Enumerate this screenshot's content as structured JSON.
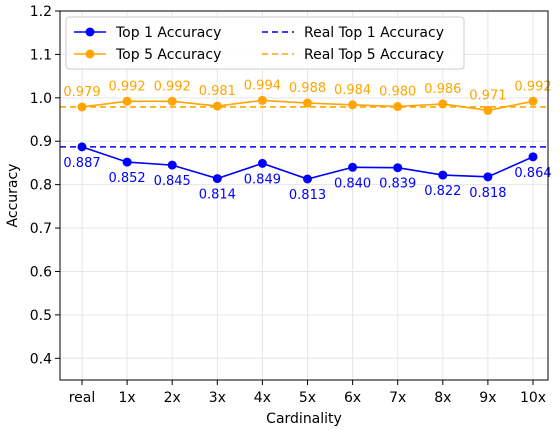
{
  "chart_data": {
    "type": "line",
    "xlabel": "Cardinality",
    "ylabel": "Accuracy",
    "categories": [
      "real",
      "1x",
      "2x",
      "3x",
      "4x",
      "5x",
      "6x",
      "7x",
      "8x",
      "9x",
      "10x"
    ],
    "ylim": [
      0.35,
      1.2
    ],
    "yticks": [
      "0.4",
      "0.5",
      "0.6",
      "0.7",
      "0.8",
      "0.9",
      "1.0",
      "1.1",
      "1.2"
    ],
    "grid": true,
    "legend_position": "top-left",
    "series": [
      {
        "name": "Top 1 Accuracy",
        "color": "#0000ff",
        "style": "solid",
        "marker": "circle",
        "values": [
          0.887,
          0.852,
          0.845,
          0.814,
          0.849,
          0.813,
          0.84,
          0.839,
          0.822,
          0.818,
          0.864
        ],
        "labels": [
          "0.887",
          "0.852",
          "0.845",
          "0.814",
          "0.849",
          "0.813",
          "0.840",
          "0.839",
          "0.822",
          "0.818",
          "0.864"
        ]
      },
      {
        "name": "Top 5 Accuracy",
        "color": "#ffa500",
        "style": "solid",
        "marker": "circle",
        "values": [
          0.979,
          0.992,
          0.992,
          0.981,
          0.994,
          0.988,
          0.984,
          0.98,
          0.986,
          0.971,
          0.992
        ],
        "labels": [
          "0.979",
          "0.992",
          "0.992",
          "0.981",
          "0.994",
          "0.988",
          "0.984",
          "0.980",
          "0.986",
          "0.971",
          "0.992"
        ]
      }
    ],
    "reference_lines": [
      {
        "name": "Real Top 1 Accuracy",
        "color": "#0000ff",
        "style": "dashed",
        "value": 0.887
      },
      {
        "name": "Real Top 5 Accuracy",
        "color": "#ffa500",
        "style": "dashed",
        "value": 0.979
      }
    ]
  }
}
